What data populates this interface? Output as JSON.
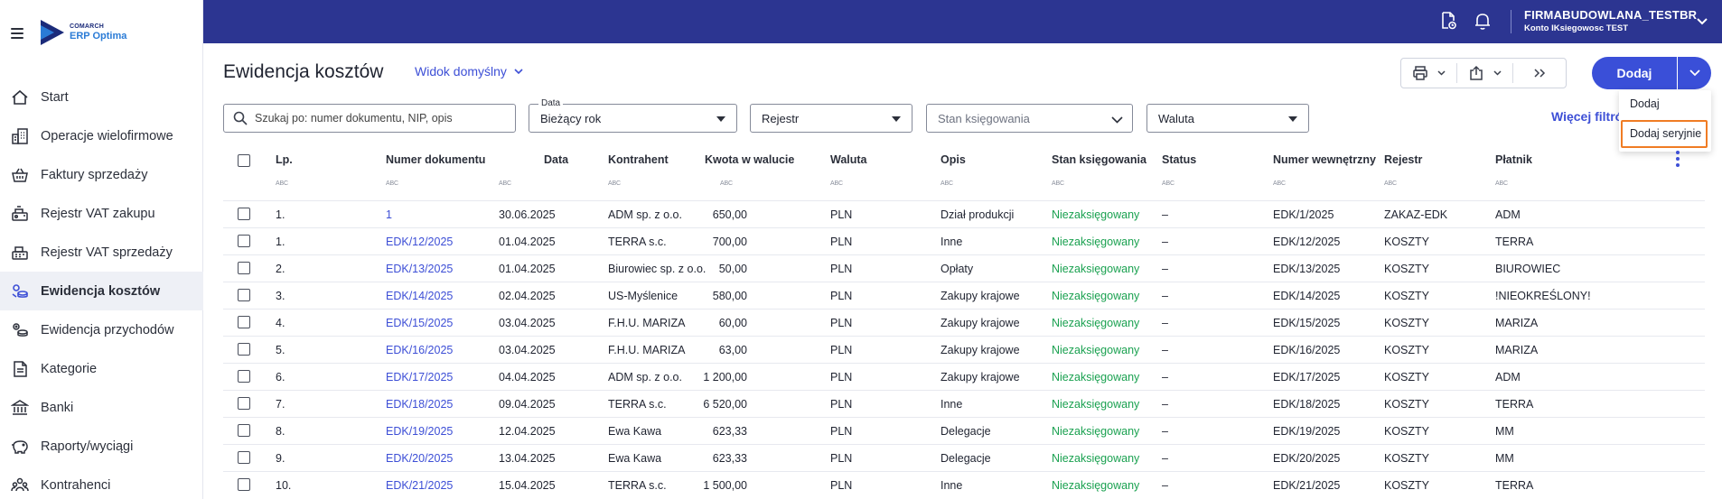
{
  "app": {
    "logo_line1": "COMARCH",
    "logo_line2": "ERP Optima",
    "colors": {
      "topbar": "#2c3591",
      "accent": "#3a4fd8",
      "link": "#3d4fd6",
      "posted_green": "#1aa150",
      "highlight": "#f07c24"
    }
  },
  "sidebar": {
    "items": [
      {
        "label": "Start",
        "icon": "home-icon"
      },
      {
        "label": "Operacje wielofirmowe",
        "icon": "buildings-icon"
      },
      {
        "label": "Faktury sprzedaży",
        "icon": "basket-icon"
      },
      {
        "label": "Rejestr VAT zakupu",
        "icon": "cart-register-icon"
      },
      {
        "label": "Rejestr VAT sprzedaży",
        "icon": "cash-register-icon"
      },
      {
        "label": "Ewidencja kosztów",
        "icon": "costs-icon",
        "active": true
      },
      {
        "label": "Ewidencja przychodów",
        "icon": "income-icon"
      },
      {
        "label": "Kategorie",
        "icon": "categories-icon"
      },
      {
        "label": "Banki",
        "icon": "bank-icon"
      },
      {
        "label": "Raporty/wyciągi",
        "icon": "piggy-bank-icon"
      },
      {
        "label": "Kontrahenci",
        "icon": "contractors-icon"
      }
    ]
  },
  "topbar": {
    "company": "FIRMABUDOWLANA_TESTBR",
    "account": "Konto IKsiegowosc TEST"
  },
  "main": {
    "title": "Ewidencja kosztów",
    "view": "Widok domyślny",
    "add_label": "Dodaj",
    "dropdown": [
      "Dodaj",
      "Dodaj seryjnie"
    ],
    "search_placeholder": "Szukaj po: numer dokumentu, NIP, opis",
    "filters": {
      "date_label": "Data",
      "date_value": "Bieżący rok",
      "register": "Rejestr",
      "posting_status": "Stan księgowania",
      "currency": "Waluta"
    },
    "more_filters": "Więcej filtrów"
  },
  "table": {
    "headers": {
      "lp": "Lp.",
      "number": "Numer dokumentu",
      "date": "Data",
      "contractor": "Kontrahent",
      "amount": "Kwota w walucie",
      "currency": "Waluta",
      "description": "Opis",
      "posting": "Stan księgowania",
      "status": "Status",
      "internal": "Numer wewnętrzny",
      "register": "Rejestr",
      "payer": "Płatnik"
    },
    "filter_hint": "ABC",
    "rows": [
      [
        "1.",
        "1",
        "30.06.2025",
        "ADM sp. z o.o.",
        "650,00",
        "PLN",
        "Dział produkcji",
        "Niezaksięgowany",
        "–",
        "EDK/1/2025",
        "ZAKAZ-EDK",
        "ADM"
      ],
      [
        "1.",
        "EDK/12/2025",
        "01.04.2025",
        "TERRA s.c.",
        "700,00",
        "PLN",
        "Inne",
        "Niezaksięgowany",
        "–",
        "EDK/12/2025",
        "KOSZTY",
        "TERRA"
      ],
      [
        "2.",
        "EDK/13/2025",
        "01.04.2025",
        "Biurowiec sp. z o.o.",
        "50,00",
        "PLN",
        "Opłaty",
        "Niezaksięgowany",
        "–",
        "EDK/13/2025",
        "KOSZTY",
        "BIUROWIEC"
      ],
      [
        "3.",
        "EDK/14/2025",
        "02.04.2025",
        "US-Myślenice",
        "580,00",
        "PLN",
        "Zakupy krajowe",
        "Niezaksięgowany",
        "–",
        "EDK/14/2025",
        "KOSZTY",
        "!NIEOKREŚLONY!"
      ],
      [
        "4.",
        "EDK/15/2025",
        "03.04.2025",
        "F.H.U. MARIZA",
        "60,00",
        "PLN",
        "Zakupy krajowe",
        "Niezaksięgowany",
        "–",
        "EDK/15/2025",
        "KOSZTY",
        "MARIZA"
      ],
      [
        "5.",
        "EDK/16/2025",
        "03.04.2025",
        "F.H.U. MARIZA",
        "63,00",
        "PLN",
        "Zakupy krajowe",
        "Niezaksięgowany",
        "–",
        "EDK/16/2025",
        "KOSZTY",
        "MARIZA"
      ],
      [
        "6.",
        "EDK/17/2025",
        "04.04.2025",
        "ADM sp. z o.o.",
        "1 200,00",
        "PLN",
        "Zakupy krajowe",
        "Niezaksięgowany",
        "–",
        "EDK/17/2025",
        "KOSZTY",
        "ADM"
      ],
      [
        "7.",
        "EDK/18/2025",
        "09.04.2025",
        "TERRA s.c.",
        "6 520,00",
        "PLN",
        "Inne",
        "Niezaksięgowany",
        "–",
        "EDK/18/2025",
        "KOSZTY",
        "TERRA"
      ],
      [
        "8.",
        "EDK/19/2025",
        "12.04.2025",
        "Ewa Kawa",
        "623,33",
        "PLN",
        "Delegacje",
        "Niezaksięgowany",
        "–",
        "EDK/19/2025",
        "KOSZTY",
        "MM"
      ],
      [
        "9.",
        "EDK/20/2025",
        "13.04.2025",
        "Ewa Kawa",
        "623,33",
        "PLN",
        "Delegacje",
        "Niezaksięgowany",
        "–",
        "EDK/20/2025",
        "KOSZTY",
        "MM"
      ],
      [
        "10.",
        "EDK/21/2025",
        "15.04.2025",
        "TERRA s.c.",
        "1 500,00",
        "PLN",
        "Inne",
        "Niezaksięgowany",
        "–",
        "EDK/21/2025",
        "KOSZTY",
        "TERRA"
      ]
    ]
  }
}
